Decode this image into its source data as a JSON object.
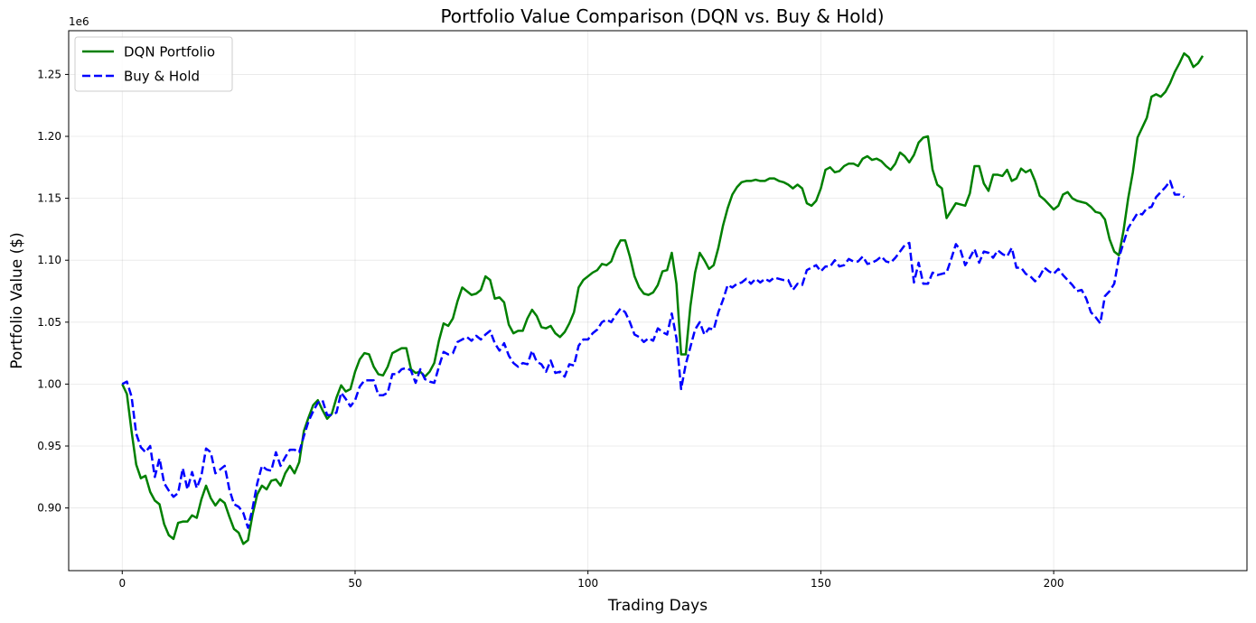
{
  "chart_data": {
    "type": "line",
    "title": "Portfolio Value Comparison (DQN vs. Buy & Hold)",
    "xlabel": "Trading Days",
    "ylabel": "Portfolio Value ($)",
    "y_offset_label": "1e6",
    "xlim": [
      -11.5,
      241.5
    ],
    "ylim": [
      0.8494,
      1.2853
    ],
    "x_ticks": [
      0,
      50,
      100,
      150,
      200
    ],
    "y_ticks": [
      0.9,
      0.95,
      1.0,
      1.05,
      1.1,
      1.15,
      1.2,
      1.25
    ],
    "y_tick_labels": [
      "0.90",
      "0.95",
      "1.00",
      "1.05",
      "1.10",
      "1.15",
      "1.20",
      "1.25"
    ],
    "grid": true,
    "legend_position": "upper-left",
    "series": [
      {
        "name": "DQN Portfolio",
        "color": "#008000",
        "style": "solid",
        "values": [
          1.0,
          0.992,
          0.962,
          0.935,
          0.924,
          0.926,
          0.913,
          0.906,
          0.903,
          0.887,
          0.878,
          0.875,
          0.888,
          0.889,
          0.889,
          0.894,
          0.892,
          0.907,
          0.918,
          0.908,
          0.902,
          0.907,
          0.904,
          0.893,
          0.883,
          0.88,
          0.871,
          0.874,
          0.895,
          0.911,
          0.918,
          0.915,
          0.922,
          0.923,
          0.918,
          0.928,
          0.934,
          0.928,
          0.937,
          0.962,
          0.973,
          0.983,
          0.987,
          0.979,
          0.972,
          0.976,
          0.989,
          0.999,
          0.994,
          0.996,
          1.01,
          1.02,
          1.025,
          1.024,
          1.014,
          1.008,
          1.007,
          1.014,
          1.025,
          1.027,
          1.029,
          1.029,
          1.012,
          1.009,
          1.01,
          1.006,
          1.01,
          1.017,
          1.035,
          1.049,
          1.047,
          1.053,
          1.067,
          1.078,
          1.075,
          1.072,
          1.073,
          1.076,
          1.087,
          1.084,
          1.069,
          1.07,
          1.066,
          1.048,
          1.041,
          1.043,
          1.043,
          1.053,
          1.06,
          1.055,
          1.046,
          1.045,
          1.047,
          1.041,
          1.038,
          1.042,
          1.049,
          1.058,
          1.078,
          1.084,
          1.087,
          1.09,
          1.092,
          1.097,
          1.096,
          1.099,
          1.109,
          1.116,
          1.116,
          1.103,
          1.087,
          1.078,
          1.073,
          1.072,
          1.074,
          1.08,
          1.091,
          1.092,
          1.106,
          1.081,
          1.024,
          1.024,
          1.063,
          1.09,
          1.106,
          1.1,
          1.093,
          1.096,
          1.11,
          1.128,
          1.142,
          1.153,
          1.159,
          1.163,
          1.164,
          1.164,
          1.165,
          1.164,
          1.164,
          1.166,
          1.166,
          1.164,
          1.163,
          1.161,
          1.158,
          1.161,
          1.158,
          1.146,
          1.144,
          1.148,
          1.158,
          1.173,
          1.175,
          1.171,
          1.172,
          1.176,
          1.178,
          1.178,
          1.176,
          1.182,
          1.184,
          1.181,
          1.182,
          1.18,
          1.176,
          1.173,
          1.178,
          1.187,
          1.184,
          1.179,
          1.185,
          1.195,
          1.199,
          1.2,
          1.173,
          1.161,
          1.158,
          1.134,
          1.14,
          1.146,
          1.145,
          1.144,
          1.154,
          1.176,
          1.176,
          1.162,
          1.156,
          1.169,
          1.169,
          1.168,
          1.173,
          1.164,
          1.166,
          1.174,
          1.171,
          1.173,
          1.164,
          1.152,
          1.149,
          1.145,
          1.141,
          1.144,
          1.153,
          1.155,
          1.15,
          1.148,
          1.147,
          1.146,
          1.143,
          1.139,
          1.138,
          1.133,
          1.117,
          1.107,
          1.104,
          1.124,
          1.15,
          1.171,
          1.199,
          1.207,
          1.215,
          1.232,
          1.234,
          1.232,
          1.236,
          1.243,
          1.252,
          1.259,
          1.267,
          1.264,
          1.256,
          1.259,
          1.265
        ]
      },
      {
        "name": "Buy & Hold",
        "color": "#0000ff",
        "style": "dashed",
        "values": [
          1.0,
          1.002,
          0.99,
          0.96,
          0.949,
          0.945,
          0.95,
          0.925,
          0.94,
          0.92,
          0.914,
          0.909,
          0.912,
          0.932,
          0.915,
          0.929,
          0.916,
          0.926,
          0.948,
          0.945,
          0.928,
          0.931,
          0.934,
          0.915,
          0.903,
          0.901,
          0.896,
          0.884,
          0.9,
          0.92,
          0.934,
          0.931,
          0.93,
          0.945,
          0.934,
          0.941,
          0.947,
          0.947,
          0.945,
          0.958,
          0.97,
          0.978,
          0.985,
          0.987,
          0.975,
          0.975,
          0.977,
          0.993,
          0.988,
          0.982,
          0.987,
          0.998,
          1.003,
          1.003,
          1.003,
          0.991,
          0.991,
          0.993,
          1.008,
          1.008,
          1.012,
          1.013,
          1.011,
          1.001,
          1.012,
          1.004,
          1.002,
          1.001,
          1.014,
          1.026,
          1.024,
          1.025,
          1.034,
          1.036,
          1.038,
          1.035,
          1.039,
          1.036,
          1.04,
          1.043,
          1.033,
          1.027,
          1.033,
          1.023,
          1.017,
          1.014,
          1.017,
          1.016,
          1.027,
          1.018,
          1.016,
          1.01,
          1.019,
          1.009,
          1.01,
          1.006,
          1.016,
          1.015,
          1.031,
          1.036,
          1.036,
          1.041,
          1.044,
          1.05,
          1.052,
          1.05,
          1.056,
          1.061,
          1.058,
          1.05,
          1.04,
          1.038,
          1.034,
          1.037,
          1.035,
          1.045,
          1.042,
          1.04,
          1.057,
          1.037,
          0.996,
          1.016,
          1.03,
          1.044,
          1.05,
          1.04,
          1.045,
          1.044,
          1.058,
          1.068,
          1.08,
          1.078,
          1.081,
          1.082,
          1.085,
          1.081,
          1.085,
          1.082,
          1.085,
          1.083,
          1.086,
          1.085,
          1.084,
          1.084,
          1.076,
          1.081,
          1.08,
          1.092,
          1.094,
          1.096,
          1.091,
          1.095,
          1.095,
          1.1,
          1.095,
          1.096,
          1.101,
          1.099,
          1.099,
          1.103,
          1.097,
          1.098,
          1.1,
          1.103,
          1.099,
          1.098,
          1.102,
          1.107,
          1.112,
          1.114,
          1.082,
          1.098,
          1.081,
          1.081,
          1.09,
          1.088,
          1.089,
          1.09,
          1.101,
          1.113,
          1.108,
          1.096,
          1.102,
          1.109,
          1.098,
          1.107,
          1.106,
          1.102,
          1.108,
          1.105,
          1.103,
          1.11,
          1.094,
          1.094,
          1.089,
          1.087,
          1.083,
          1.087,
          1.094,
          1.091,
          1.089,
          1.093,
          1.088,
          1.084,
          1.08,
          1.075,
          1.076,
          1.069,
          1.058,
          1.054,
          1.049,
          1.071,
          1.075,
          1.081,
          1.102,
          1.114,
          1.126,
          1.132,
          1.138,
          1.137,
          1.142,
          1.143,
          1.151,
          1.155,
          1.159,
          1.164,
          1.153,
          1.153,
          1.151
        ]
      }
    ]
  }
}
